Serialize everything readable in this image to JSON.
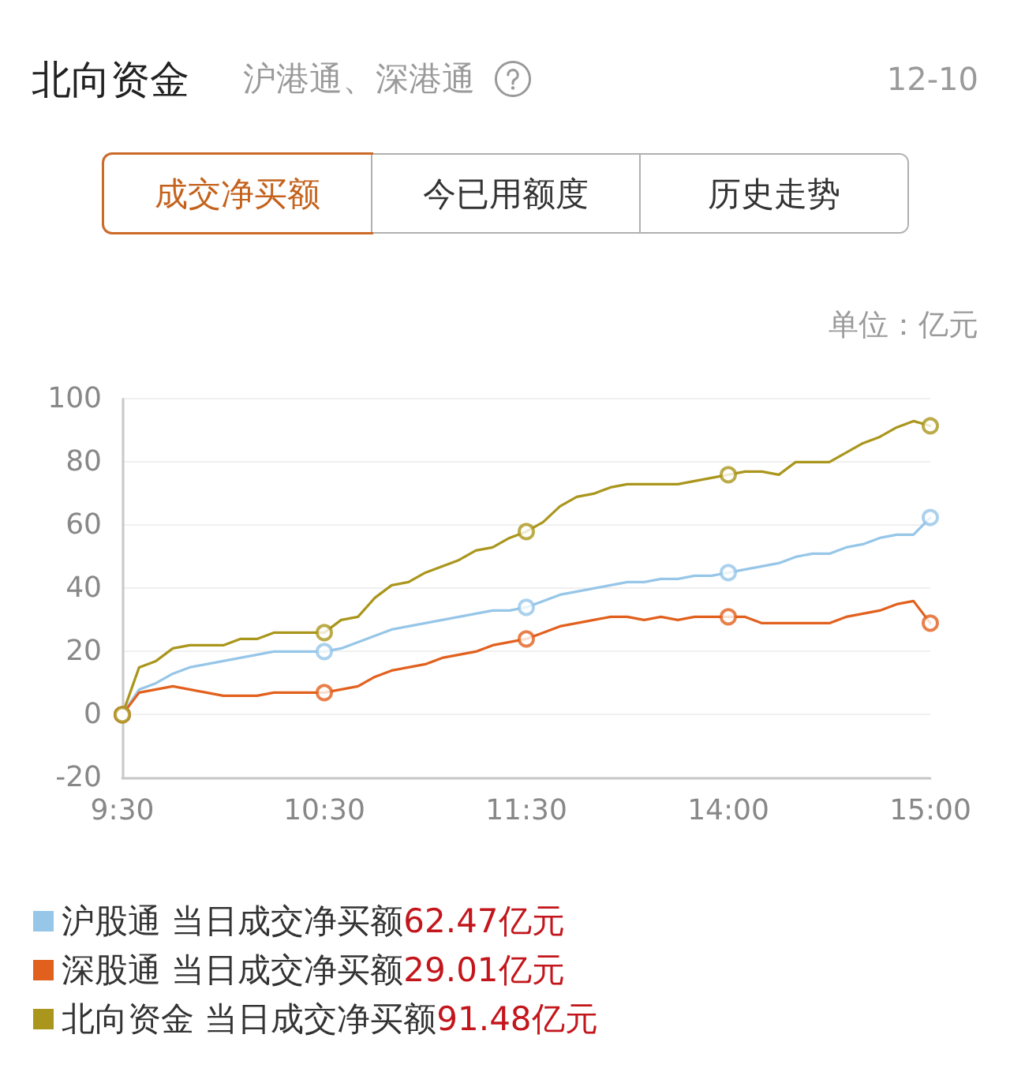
{
  "chart_data": {
    "type": "line",
    "title": "北向资金",
    "subtitle": "沪港通、深港通",
    "ylabel": "单位：亿元",
    "annotations": [
      "12-10",
      "成交净买额",
      "今已用额度",
      "历史走势"
    ],
    "categories": [
      "9:30",
      null,
      null,
      null,
      null,
      null,
      null,
      null,
      null,
      null,
      null,
      null,
      "10:30",
      null,
      null,
      null,
      null,
      null,
      null,
      null,
      null,
      null,
      null,
      null,
      "11:30",
      null,
      null,
      null,
      null,
      null,
      null,
      null,
      null,
      null,
      null,
      null,
      "14:00",
      null,
      null,
      null,
      null,
      null,
      null,
      null,
      null,
      null,
      null,
      null,
      "15:00"
    ],
    "ylim": [
      -20,
      100
    ],
    "yticks": [
      -20,
      0,
      20,
      40,
      60,
      80,
      100
    ],
    "grid": "y",
    "legend": "bottom",
    "line_style": "solid",
    "series": [
      {
        "name": "沪股通 当日成交净买额62.47亿元",
        "color": "#96c6e8",
        "values": [
          0,
          8,
          10,
          13,
          15,
          16,
          17,
          18,
          19,
          20,
          20,
          20,
          20,
          21,
          23,
          25,
          27,
          28,
          29,
          30,
          31,
          32,
          33,
          33,
          34,
          36,
          38,
          39,
          40,
          41,
          42,
          42,
          43,
          43,
          44,
          44,
          45,
          46,
          47,
          48,
          50,
          51,
          51,
          53,
          54,
          56,
          57,
          57,
          62.47
        ]
      },
      {
        "name": "深股通 当日成交净买额29.01亿元",
        "color": "#e2601e",
        "values": [
          0,
          7,
          8,
          9,
          8,
          7,
          6,
          6,
          6,
          7,
          7,
          7,
          7,
          8,
          9,
          12,
          14,
          15,
          16,
          18,
          19,
          20,
          22,
          23,
          24,
          26,
          28,
          29,
          30,
          31,
          31,
          30,
          31,
          30,
          31,
          31,
          31,
          31,
          29,
          29,
          29,
          29,
          29,
          31,
          32,
          33,
          35,
          36,
          29.01
        ]
      },
      {
        "name": "北向资金 当日成交净买额91.48亿元",
        "color": "#aa961c",
        "values": [
          0,
          15,
          17,
          21,
          22,
          22,
          22,
          24,
          24,
          26,
          26,
          26,
          26,
          30,
          31,
          37,
          41,
          42,
          45,
          47,
          49,
          52,
          53,
          56,
          58,
          61,
          66,
          69,
          70,
          72,
          73,
          73,
          73,
          73,
          74,
          75,
          76,
          77,
          77,
          76,
          80,
          80,
          80,
          83,
          86,
          88,
          91,
          93,
          91.48
        ]
      },
      {
        "type": "scatter",
        "marker": "circle",
        "color": "#96c6e8",
        "x": [
          "9:30",
          "10:30",
          "11:30",
          "14:00",
          "15:00"
        ],
        "values": [
          0,
          20,
          34,
          45,
          62.47
        ]
      },
      {
        "type": "scatter",
        "marker": "circle",
        "color": "#e2601e",
        "x": [
          "9:30",
          "10:30",
          "11:30",
          "14:00",
          "15:00"
        ],
        "values": [
          0,
          7,
          24,
          31,
          29.01
        ]
      },
      {
        "type": "scatter",
        "marker": "circle",
        "color": "#aa961c",
        "x": [
          "9:30",
          "10:30",
          "11:30",
          "14:00",
          "15:00"
        ],
        "values": [
          0,
          26,
          58,
          76,
          91.48
        ]
      }
    ]
  }
}
